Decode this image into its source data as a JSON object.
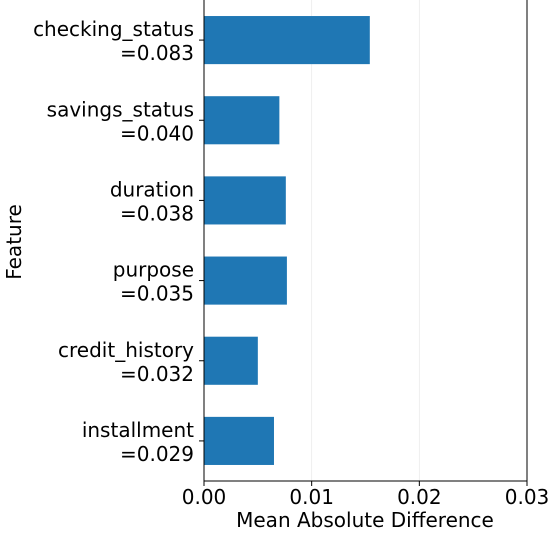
{
  "chart_data": {
    "type": "bar",
    "orientation": "horizontal",
    "categories": [
      [
        "checking_status",
        "=0.083"
      ],
      [
        "savings_status",
        "=0.040"
      ],
      [
        "duration",
        "=0.038"
      ],
      [
        "purpose",
        "=0.035"
      ],
      [
        "credit_history",
        "=0.032"
      ],
      [
        "installment",
        "=0.029"
      ]
    ],
    "values": [
      0.0154,
      0.007,
      0.0076,
      0.0077,
      0.005,
      0.0065
    ],
    "xlabel": "Mean Absolute Difference",
    "ylabel": "Feature",
    "xlim": [
      0,
      0.03
    ],
    "xticks": [
      "0.00",
      "0.01",
      "0.02",
      "0.03"
    ],
    "bar_color": "#1f77b4",
    "grid": "vertical, faint"
  }
}
